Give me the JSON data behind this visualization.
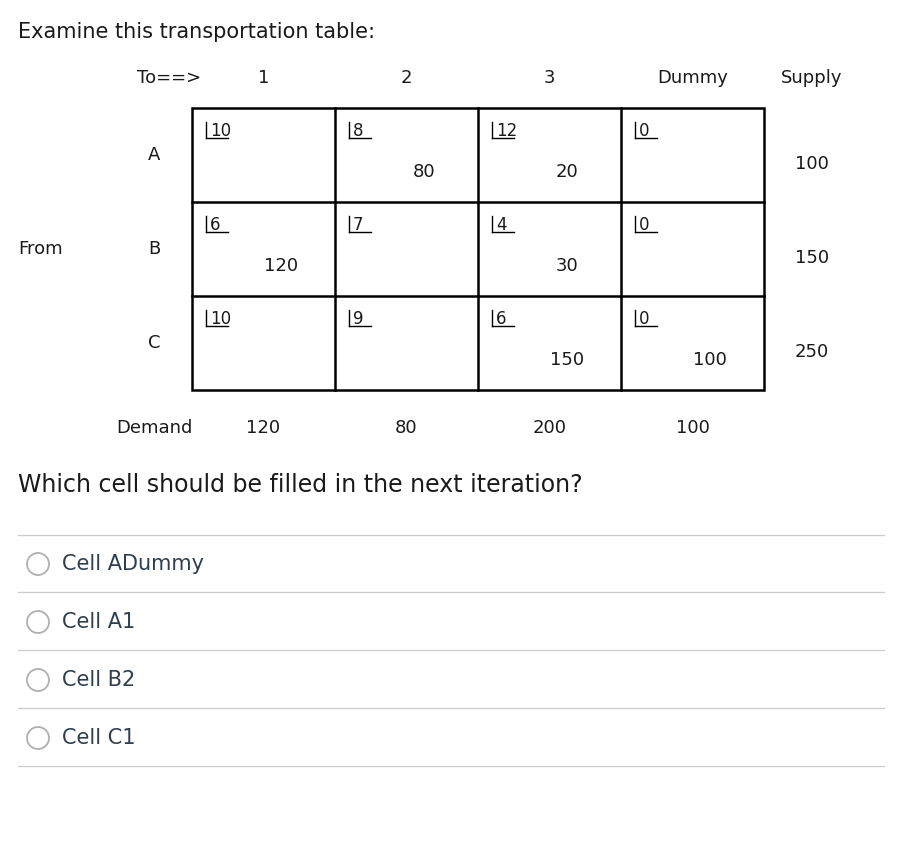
{
  "title": "Examine this transportation table:",
  "to_label": "To==>",
  "from_label": "From",
  "col_headers": [
    "1",
    "2",
    "3",
    "Dummy",
    "Supply"
  ],
  "row_headers": [
    "A",
    "B",
    "C"
  ],
  "demand_label": "Demand",
  "demand_values": [
    "120",
    "80",
    "200",
    "100"
  ],
  "supply_values": [
    "100",
    "150",
    "250"
  ],
  "costs": [
    [
      "10",
      "8",
      "12",
      "0"
    ],
    [
      "6",
      "7",
      "4",
      "0"
    ],
    [
      "10",
      "9",
      "6",
      "0"
    ]
  ],
  "allocations": [
    [
      "",
      "80",
      "20",
      ""
    ],
    [
      "120",
      "",
      "30",
      ""
    ],
    [
      "",
      "",
      "150",
      "100"
    ]
  ],
  "question": "Which cell should be filled in the next iteration?",
  "options": [
    "Cell ADummy",
    "Cell A1",
    "Cell B2",
    "Cell C1"
  ],
  "bg_color": "#ffffff",
  "text_color": "#1a1a1a",
  "option_text_color": "#2d3e50",
  "table_line_color": "#000000",
  "option_line_color": "#cccccc",
  "title_fontsize": 15,
  "header_fontsize": 13,
  "cell_cost_fontsize": 12,
  "cell_alloc_fontsize": 13,
  "question_fontsize": 17,
  "option_fontsize": 15,
  "demand_fontsize": 13
}
